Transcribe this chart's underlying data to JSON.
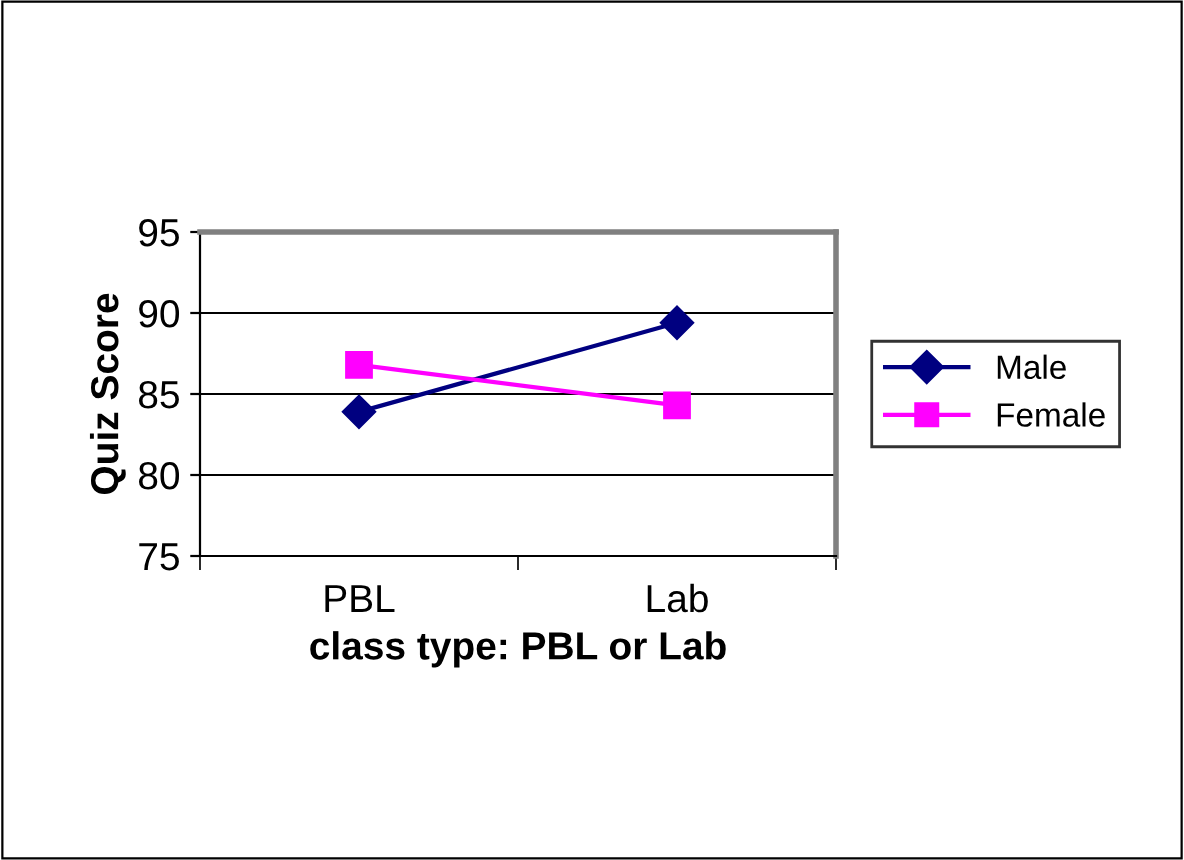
{
  "chart_data": {
    "type": "line",
    "xlabel": "class type: PBL or Lab",
    "ylabel": "Quiz Score",
    "categories": [
      "PBL",
      "Lab"
    ],
    "series": [
      {
        "name": "Male",
        "color": "#000080",
        "values": [
          83.9,
          89.4
        ],
        "marker": "diamond"
      },
      {
        "name": "Female",
        "color": "#ff00ff",
        "values": [
          86.8,
          84.3
        ],
        "marker": "square"
      }
    ],
    "ylim": [
      75,
      95
    ],
    "yticks": [
      75,
      80,
      85,
      90,
      95
    ],
    "grid": "y",
    "legend": "right",
    "line_style": "solid"
  }
}
